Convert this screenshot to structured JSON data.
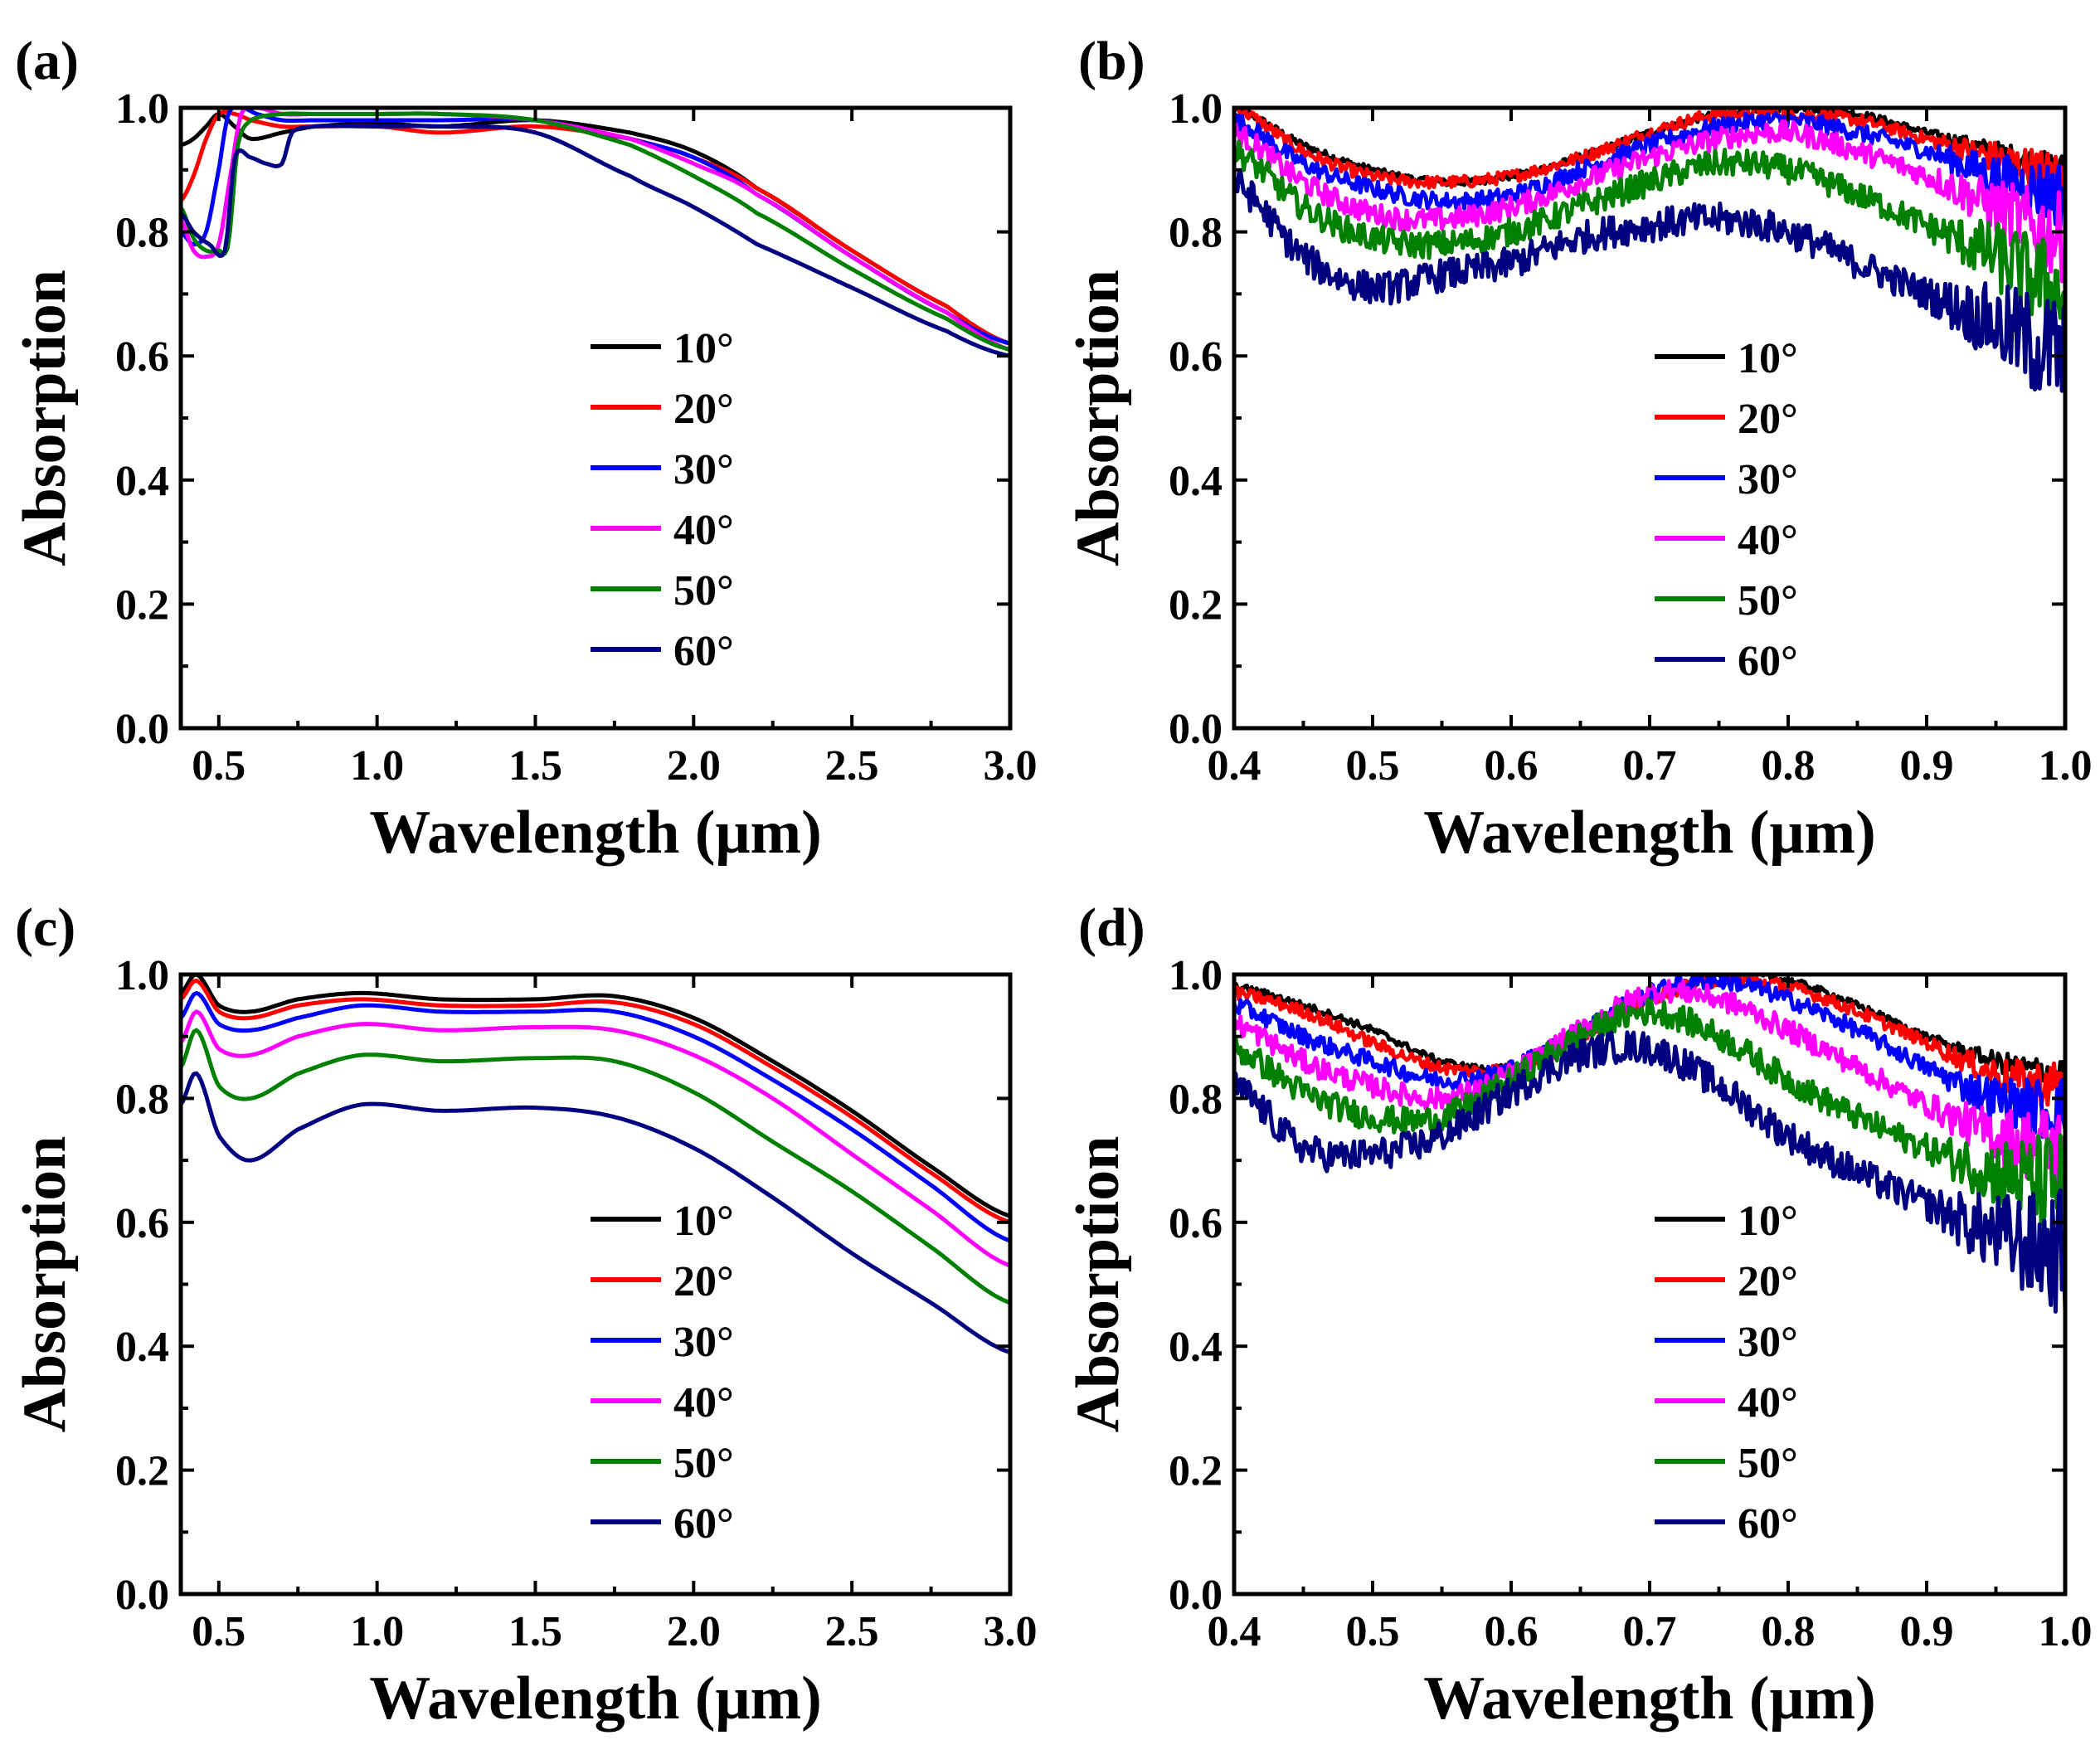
{
  "chart_data": [
    {
      "panel": "(a)",
      "type": "line",
      "xlabel": "Wavelength (μm)",
      "ylabel": "Absorption",
      "xlim": [
        0.38,
        3.0
      ],
      "ylim": [
        0.0,
        1.0
      ],
      "xticks": [
        0.5,
        1.0,
        1.5,
        2.0,
        2.5,
        3.0
      ],
      "xtick_labels": [
        "0.5",
        "1.0",
        "1.5",
        "2.0",
        "2.5",
        "3.0"
      ],
      "yticks": [
        0.0,
        0.2,
        0.4,
        0.6,
        0.8,
        1.0
      ],
      "ytick_labels": [
        "0.0",
        "0.2",
        "0.4",
        "0.6",
        "0.8",
        "1.0"
      ],
      "legend_position": "center-right",
      "noisy": false,
      "series": [
        {
          "name": "10°",
          "color": "#000000",
          "x": [
            0.38,
            0.42,
            0.46,
            0.5,
            0.55,
            0.6,
            0.7,
            0.8,
            1.0,
            1.2,
            1.5,
            1.8,
            2.0,
            2.2,
            2.5,
            2.8,
            3.0
          ],
          "y": [
            0.94,
            0.95,
            0.97,
            0.99,
            0.97,
            0.95,
            0.96,
            0.97,
            0.975,
            0.97,
            0.98,
            0.96,
            0.93,
            0.87,
            0.77,
            0.68,
            0.62
          ]
        },
        {
          "name": "20°",
          "color": "#ff0000",
          "x": [
            0.38,
            0.42,
            0.46,
            0.5,
            0.55,
            0.6,
            0.7,
            0.8,
            1.0,
            1.2,
            1.5,
            1.8,
            2.0,
            2.2,
            2.5,
            2.8,
            3.0
          ],
          "y": [
            0.85,
            0.89,
            0.95,
            0.99,
            0.99,
            0.98,
            0.97,
            0.97,
            0.97,
            0.96,
            0.97,
            0.95,
            0.92,
            0.87,
            0.77,
            0.68,
            0.62
          ]
        },
        {
          "name": "30°",
          "color": "#0000ff",
          "x": [
            0.38,
            0.42,
            0.46,
            0.5,
            0.53,
            0.57,
            0.62,
            0.7,
            0.8,
            1.0,
            1.2,
            1.5,
            1.8,
            2.0,
            2.2,
            2.5,
            2.8,
            3.0
          ],
          "y": [
            0.8,
            0.78,
            0.8,
            0.9,
            0.99,
            1.0,
            0.99,
            0.98,
            0.98,
            0.98,
            0.98,
            0.98,
            0.95,
            0.92,
            0.86,
            0.76,
            0.67,
            0.62
          ]
        },
        {
          "name": "40°",
          "color": "#ff00ff",
          "x": [
            0.38,
            0.42,
            0.46,
            0.5,
            0.54,
            0.57,
            0.62,
            0.7,
            0.8,
            1.0,
            1.2,
            1.5,
            1.8,
            2.0,
            2.2,
            2.5,
            2.8,
            3.0
          ],
          "y": [
            0.82,
            0.77,
            0.76,
            0.78,
            0.9,
            0.99,
            1.0,
            0.99,
            0.99,
            0.99,
            0.99,
            0.98,
            0.95,
            0.91,
            0.86,
            0.76,
            0.67,
            0.61
          ]
        },
        {
          "name": "50°",
          "color": "#008000",
          "x": [
            0.38,
            0.42,
            0.46,
            0.5,
            0.53,
            0.56,
            0.6,
            0.7,
            0.8,
            1.0,
            1.2,
            1.5,
            1.8,
            2.0,
            2.2,
            2.5,
            2.8,
            3.0
          ],
          "y": [
            0.84,
            0.79,
            0.77,
            0.77,
            0.78,
            0.94,
            0.98,
            0.99,
            0.99,
            0.99,
            0.99,
            0.98,
            0.94,
            0.89,
            0.83,
            0.74,
            0.66,
            0.61
          ]
        },
        {
          "name": "60°",
          "color": "#000080",
          "x": [
            0.38,
            0.42,
            0.47,
            0.52,
            0.55,
            0.6,
            0.65,
            0.7,
            0.73,
            0.8,
            1.0,
            1.2,
            1.5,
            1.8,
            2.0,
            2.2,
            2.5,
            2.8,
            3.0
          ],
          "y": [
            0.83,
            0.8,
            0.78,
            0.77,
            0.92,
            0.92,
            0.91,
            0.91,
            0.96,
            0.97,
            0.97,
            0.97,
            0.96,
            0.89,
            0.84,
            0.78,
            0.71,
            0.64,
            0.6
          ]
        }
      ]
    },
    {
      "panel": "(b)",
      "type": "line",
      "xlabel": "Wavelength (μm)",
      "ylabel": "Absorption",
      "xlim": [
        0.4,
        1.0
      ],
      "ylim": [
        0.0,
        1.0
      ],
      "xticks": [
        0.4,
        0.5,
        0.6,
        0.7,
        0.8,
        0.9,
        1.0
      ],
      "xtick_labels": [
        "0.4",
        "0.5",
        "0.6",
        "0.7",
        "0.8",
        "0.9",
        "1.0"
      ],
      "yticks": [
        0.0,
        0.2,
        0.4,
        0.6,
        0.8,
        1.0
      ],
      "ytick_labels": [
        "0.0",
        "0.2",
        "0.4",
        "0.6",
        "0.8",
        "1.0"
      ],
      "legend_position": "center-right",
      "noisy": true,
      "series": [
        {
          "name": "10°",
          "color": "#000000",
          "x": [
            0.4,
            0.45,
            0.5,
            0.55,
            0.6,
            0.65,
            0.7,
            0.75,
            0.8,
            0.85,
            0.9,
            0.95,
            1.0
          ],
          "y": [
            1.0,
            0.94,
            0.9,
            0.88,
            0.89,
            0.92,
            0.96,
            0.99,
            1.0,
            0.99,
            0.96,
            0.93,
            0.9
          ]
        },
        {
          "name": "20°",
          "color": "#ff0000",
          "x": [
            0.4,
            0.45,
            0.5,
            0.55,
            0.6,
            0.65,
            0.7,
            0.75,
            0.8,
            0.85,
            0.9,
            0.95,
            1.0
          ],
          "y": [
            1.0,
            0.93,
            0.89,
            0.88,
            0.89,
            0.92,
            0.96,
            0.99,
            0.99,
            0.98,
            0.95,
            0.92,
            0.89
          ]
        },
        {
          "name": "30°",
          "color": "#0000ff",
          "x": [
            0.4,
            0.45,
            0.5,
            0.55,
            0.6,
            0.65,
            0.7,
            0.75,
            0.8,
            0.85,
            0.9,
            0.95,
            1.0
          ],
          "y": [
            0.98,
            0.91,
            0.87,
            0.85,
            0.86,
            0.9,
            0.94,
            0.97,
            0.98,
            0.96,
            0.93,
            0.89,
            0.86
          ]
        },
        {
          "name": "40°",
          "color": "#ff00ff",
          "x": [
            0.4,
            0.45,
            0.5,
            0.55,
            0.6,
            0.65,
            0.7,
            0.75,
            0.8,
            0.85,
            0.9,
            0.95,
            1.0
          ],
          "y": [
            0.96,
            0.88,
            0.83,
            0.82,
            0.84,
            0.88,
            0.92,
            0.95,
            0.96,
            0.93,
            0.89,
            0.84,
            0.79
          ]
        },
        {
          "name": "50°",
          "color": "#008000",
          "x": [
            0.4,
            0.45,
            0.5,
            0.55,
            0.6,
            0.65,
            0.7,
            0.75,
            0.8,
            0.85,
            0.9,
            0.95,
            1.0
          ],
          "y": [
            0.93,
            0.84,
            0.79,
            0.78,
            0.8,
            0.84,
            0.88,
            0.91,
            0.9,
            0.86,
            0.81,
            0.76,
            0.7
          ]
        },
        {
          "name": "60°",
          "color": "#000080",
          "x": [
            0.4,
            0.45,
            0.5,
            0.55,
            0.6,
            0.65,
            0.7,
            0.75,
            0.8,
            0.85,
            0.9,
            0.95,
            1.0
          ],
          "y": [
            0.88,
            0.76,
            0.71,
            0.73,
            0.75,
            0.79,
            0.81,
            0.82,
            0.8,
            0.75,
            0.7,
            0.65,
            0.6
          ]
        }
      ]
    },
    {
      "panel": "(c)",
      "type": "line",
      "xlabel": "Wavelength (μm)",
      "ylabel": "Absorption",
      "xlim": [
        0.38,
        3.0
      ],
      "ylim": [
        0.0,
        1.0
      ],
      "xticks": [
        0.5,
        1.0,
        1.5,
        2.0,
        2.5,
        3.0
      ],
      "xtick_labels": [
        "0.5",
        "1.0",
        "1.5",
        "2.0",
        "2.5",
        "3.0"
      ],
      "yticks": [
        0.0,
        0.2,
        0.4,
        0.6,
        0.8,
        1.0
      ],
      "ytick_labels": [
        "0.0",
        "0.2",
        "0.4",
        "0.6",
        "0.8",
        "1.0"
      ],
      "legend_position": "center-right",
      "noisy": false,
      "series": [
        {
          "name": "10°",
          "color": "#000000",
          "x": [
            0.38,
            0.43,
            0.5,
            0.6,
            0.75,
            0.95,
            1.2,
            1.5,
            1.75,
            2.0,
            2.25,
            2.5,
            2.75,
            3.0
          ],
          "y": [
            0.97,
            1.0,
            0.95,
            0.94,
            0.96,
            0.97,
            0.96,
            0.96,
            0.965,
            0.93,
            0.86,
            0.78,
            0.69,
            0.61
          ]
        },
        {
          "name": "20°",
          "color": "#ff0000",
          "x": [
            0.38,
            0.43,
            0.5,
            0.6,
            0.75,
            0.95,
            1.2,
            1.5,
            1.75,
            2.0,
            2.25,
            2.5,
            2.75,
            3.0
          ],
          "y": [
            0.96,
            0.99,
            0.94,
            0.93,
            0.95,
            0.96,
            0.95,
            0.95,
            0.955,
            0.92,
            0.85,
            0.77,
            0.68,
            0.6
          ]
        },
        {
          "name": "30°",
          "color": "#0000ff",
          "x": [
            0.38,
            0.43,
            0.5,
            0.6,
            0.75,
            0.95,
            1.2,
            1.5,
            1.75,
            2.0,
            2.25,
            2.5,
            2.75,
            3.0
          ],
          "y": [
            0.93,
            0.97,
            0.92,
            0.91,
            0.93,
            0.95,
            0.94,
            0.94,
            0.94,
            0.9,
            0.83,
            0.75,
            0.66,
            0.57
          ]
        },
        {
          "name": "40°",
          "color": "#ff00ff",
          "x": [
            0.38,
            0.43,
            0.5,
            0.6,
            0.75,
            0.95,
            1.2,
            1.5,
            1.75,
            2.0,
            2.25,
            2.5,
            2.75,
            3.0
          ],
          "y": [
            0.89,
            0.94,
            0.88,
            0.87,
            0.9,
            0.92,
            0.91,
            0.915,
            0.91,
            0.87,
            0.8,
            0.71,
            0.62,
            0.53
          ]
        },
        {
          "name": "50°",
          "color": "#008000",
          "x": [
            0.38,
            0.43,
            0.5,
            0.6,
            0.75,
            0.95,
            1.2,
            1.5,
            1.75,
            2.0,
            2.25,
            2.5,
            2.75,
            3.0
          ],
          "y": [
            0.85,
            0.91,
            0.82,
            0.8,
            0.84,
            0.87,
            0.86,
            0.865,
            0.86,
            0.81,
            0.73,
            0.65,
            0.56,
            0.47
          ]
        },
        {
          "name": "60°",
          "color": "#000080",
          "x": [
            0.38,
            0.43,
            0.5,
            0.6,
            0.75,
            0.95,
            1.2,
            1.5,
            1.75,
            2.0,
            2.25,
            2.5,
            2.75,
            3.0
          ],
          "y": [
            0.79,
            0.84,
            0.74,
            0.7,
            0.75,
            0.79,
            0.78,
            0.785,
            0.77,
            0.72,
            0.64,
            0.55,
            0.47,
            0.39
          ]
        }
      ]
    },
    {
      "panel": "(d)",
      "type": "line",
      "xlabel": "Wavelength (μm)",
      "ylabel": "Absorption",
      "xlim": [
        0.4,
        1.0
      ],
      "ylim": [
        0.0,
        1.0
      ],
      "xticks": [
        0.4,
        0.5,
        0.6,
        0.7,
        0.8,
        0.9,
        1.0
      ],
      "xtick_labels": [
        "0.4",
        "0.5",
        "0.6",
        "0.7",
        "0.8",
        "0.9",
        "1.0"
      ],
      "yticks": [
        0.0,
        0.2,
        0.4,
        0.6,
        0.8,
        1.0
      ],
      "ytick_labels": [
        "0.0",
        "0.2",
        "0.4",
        "0.6",
        "0.8",
        "1.0"
      ],
      "legend_position": "center-right",
      "noisy": true,
      "series": [
        {
          "name": "10°",
          "color": "#000000",
          "x": [
            0.4,
            0.45,
            0.5,
            0.55,
            0.6,
            0.65,
            0.7,
            0.75,
            0.8,
            0.85,
            0.9,
            0.95,
            1.0
          ],
          "y": [
            0.98,
            0.95,
            0.91,
            0.86,
            0.85,
            0.9,
            0.96,
            1.0,
            0.99,
            0.95,
            0.9,
            0.86,
            0.84
          ]
        },
        {
          "name": "20°",
          "color": "#ff0000",
          "x": [
            0.4,
            0.45,
            0.5,
            0.55,
            0.6,
            0.65,
            0.7,
            0.75,
            0.8,
            0.85,
            0.9,
            0.95,
            1.0
          ],
          "y": [
            0.97,
            0.94,
            0.89,
            0.85,
            0.85,
            0.9,
            0.96,
            0.99,
            0.98,
            0.94,
            0.89,
            0.84,
            0.82
          ]
        },
        {
          "name": "30°",
          "color": "#0000ff",
          "x": [
            0.4,
            0.45,
            0.5,
            0.55,
            0.6,
            0.65,
            0.7,
            0.75,
            0.8,
            0.85,
            0.9,
            0.95,
            1.0
          ],
          "y": [
            0.95,
            0.9,
            0.86,
            0.83,
            0.85,
            0.91,
            0.97,
            0.99,
            0.96,
            0.91,
            0.85,
            0.8,
            0.78
          ]
        },
        {
          "name": "40°",
          "color": "#ff00ff",
          "x": [
            0.4,
            0.45,
            0.5,
            0.55,
            0.6,
            0.65,
            0.7,
            0.75,
            0.8,
            0.85,
            0.9,
            0.95,
            1.0
          ],
          "y": [
            0.92,
            0.86,
            0.82,
            0.8,
            0.84,
            0.91,
            0.97,
            0.96,
            0.91,
            0.85,
            0.79,
            0.74,
            0.72
          ]
        },
        {
          "name": "50°",
          "color": "#008000",
          "x": [
            0.4,
            0.45,
            0.5,
            0.55,
            0.6,
            0.65,
            0.7,
            0.75,
            0.8,
            0.85,
            0.9,
            0.95,
            1.0
          ],
          "y": [
            0.88,
            0.81,
            0.77,
            0.77,
            0.83,
            0.9,
            0.94,
            0.9,
            0.83,
            0.77,
            0.72,
            0.68,
            0.66
          ]
        },
        {
          "name": "60°",
          "color": "#000080",
          "x": [
            0.4,
            0.45,
            0.5,
            0.55,
            0.6,
            0.65,
            0.7,
            0.75,
            0.8,
            0.85,
            0.9,
            0.95,
            1.0
          ],
          "y": [
            0.82,
            0.72,
            0.71,
            0.74,
            0.81,
            0.87,
            0.88,
            0.82,
            0.74,
            0.68,
            0.63,
            0.58,
            0.55
          ]
        }
      ]
    }
  ]
}
